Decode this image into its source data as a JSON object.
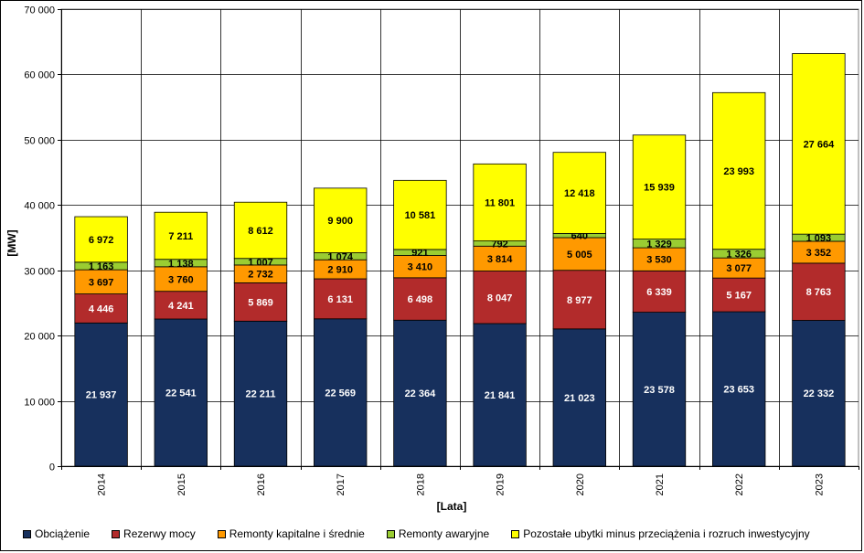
{
  "chart_data": {
    "type": "bar",
    "stacked": true,
    "categories": [
      "2014",
      "2015",
      "2016",
      "2017",
      "2018",
      "2019",
      "2020",
      "2021",
      "2022",
      "2023"
    ],
    "series": [
      {
        "name": "Obciążenie",
        "color": "#17305d",
        "label_color": "#ffffff",
        "values": [
          21937,
          22541,
          22211,
          22569,
          22364,
          21841,
          21023,
          23578,
          23653,
          22332
        ],
        "labels": [
          "21 937",
          "22 541",
          "22 211",
          "22 569",
          "22 364",
          "21 841",
          "21 023",
          "23 578",
          "23 653",
          "22 332"
        ]
      },
      {
        "name": "Rezerwy mocy",
        "color": "#b22b2b",
        "label_color": "#ffffff",
        "values": [
          4446,
          4241,
          5869,
          6131,
          6498,
          8047,
          8977,
          6339,
          5167,
          8763
        ],
        "labels": [
          "4 446",
          "4 241",
          "5 869",
          "6 131",
          "6 498",
          "8 047",
          "8 977",
          "6 339",
          "5 167",
          "8 763"
        ]
      },
      {
        "name": "Remonty kapitalne i średnie",
        "color": "#ff9900",
        "label_color": "#000000",
        "values": [
          3697,
          3760,
          2732,
          2910,
          3410,
          3814,
          5005,
          3530,
          3077,
          3352
        ],
        "labels": [
          "3 697",
          "3 760",
          "2 732",
          "2 910",
          "3 410",
          "3 814",
          "5 005",
          "3 530",
          "3 077",
          "3 352"
        ]
      },
      {
        "name": "Remonty awaryjne",
        "color": "#9acd32",
        "label_color": "#000000",
        "values": [
          1163,
          1138,
          1007,
          1074,
          921,
          792,
          640,
          1329,
          1326,
          1093
        ],
        "labels": [
          "1 163",
          "1 138",
          "1 007",
          "1 074",
          "921",
          "792",
          "640",
          "1 329",
          "1 326",
          "1 093"
        ]
      },
      {
        "name": "Pozostałe ubytki minus przeciążenia i rozruch inwestycyjny",
        "color": "#ffff00",
        "label_color": "#000000",
        "values": [
          6972,
          7211,
          8612,
          9900,
          10581,
          11801,
          12418,
          15939,
          23993,
          27664
        ],
        "labels": [
          "6 972",
          "7 211",
          "8 612",
          "9 900",
          "10 581",
          "11 801",
          "12 418",
          "15 939",
          "23 993",
          "27 664"
        ]
      }
    ],
    "ylim": [
      0,
      70000
    ],
    "yticks": [
      0,
      10000,
      20000,
      30000,
      40000,
      50000,
      60000,
      70000
    ],
    "ytick_labels": [
      "0",
      "10 000",
      "20 000",
      "30 000",
      "40 000",
      "50 000",
      "60 000",
      "70 000"
    ],
    "ylabel": "[MW]",
    "xlabel": "[Lata]",
    "grid": true,
    "legend_position": "bottom"
  }
}
